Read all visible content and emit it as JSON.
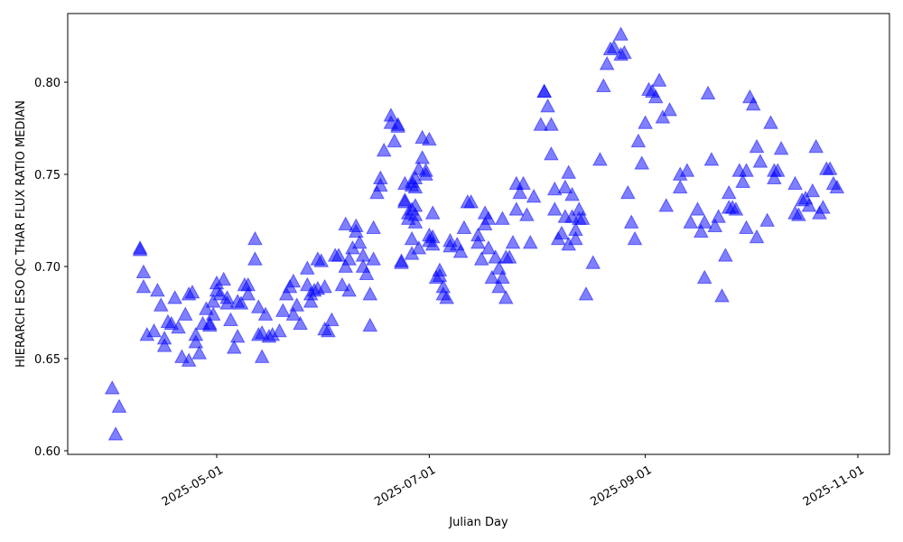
{
  "chart_data": {
    "type": "scatter",
    "title": "",
    "xlabel": "Julian Day",
    "ylabel": "HIERARCH ESO QC THAR FLUX RATIO MEDIAN",
    "ylim": [
      0.598,
      0.838
    ],
    "xlim": [
      "2025-03-21",
      "2025-11-17"
    ],
    "grid": false,
    "legend": null,
    "marker": "triangle-up",
    "color": "#0000ff",
    "alpha": 0.5,
    "y_ticks": [
      "0.60",
      "0.65",
      "0.70",
      "0.75",
      "0.80"
    ],
    "x_ticks": [
      "2025-05-01",
      "2025-07-01",
      "2025-09-01",
      "2025-11-01"
    ],
    "series": [
      {
        "name": "QC THAR FLUX RATIO MEDIAN",
        "points": [
          [
            "2025-04-01",
            0.634
          ],
          [
            "2025-04-02",
            0.609
          ],
          [
            "2025-04-03",
            0.624
          ],
          [
            "2025-04-09",
            0.71
          ],
          [
            "2025-04-09",
            0.709
          ],
          [
            "2025-04-10",
            0.697
          ],
          [
            "2025-04-10",
            0.689
          ],
          [
            "2025-04-11",
            0.663
          ],
          [
            "2025-04-13",
            0.665
          ],
          [
            "2025-04-14",
            0.687
          ],
          [
            "2025-04-15",
            0.679
          ],
          [
            "2025-04-16",
            0.661
          ],
          [
            "2025-04-16",
            0.657
          ],
          [
            "2025-04-17",
            0.67
          ],
          [
            "2025-04-18",
            0.669
          ],
          [
            "2025-04-19",
            0.683
          ],
          [
            "2025-04-20",
            0.667
          ],
          [
            "2025-04-21",
            0.651
          ],
          [
            "2025-04-22",
            0.674
          ],
          [
            "2025-04-23",
            0.649
          ],
          [
            "2025-04-23",
            0.685
          ],
          [
            "2025-04-24",
            0.686
          ],
          [
            "2025-04-25",
            0.659
          ],
          [
            "2025-04-25",
            0.663
          ],
          [
            "2025-04-26",
            0.653
          ],
          [
            "2025-04-27",
            0.669
          ],
          [
            "2025-04-28",
            0.677
          ],
          [
            "2025-04-29",
            0.668
          ],
          [
            "2025-04-29",
            0.669
          ],
          [
            "2025-04-30",
            0.674
          ],
          [
            "2025-04-30",
            0.681
          ],
          [
            "2025-05-01",
            0.687
          ],
          [
            "2025-05-01",
            0.691
          ],
          [
            "2025-05-02",
            0.685
          ],
          [
            "2025-05-03",
            0.693
          ],
          [
            "2025-05-04",
            0.683
          ],
          [
            "2025-05-04",
            0.68
          ],
          [
            "2025-05-05",
            0.671
          ],
          [
            "2025-05-06",
            0.656
          ],
          [
            "2025-05-07",
            0.662
          ],
          [
            "2025-05-07",
            0.681
          ],
          [
            "2025-05-08",
            0.68
          ],
          [
            "2025-05-09",
            0.69
          ],
          [
            "2025-05-10",
            0.69
          ],
          [
            "2025-05-10",
            0.685
          ],
          [
            "2025-05-12",
            0.715
          ],
          [
            "2025-05-12",
            0.704
          ],
          [
            "2025-05-13",
            0.678
          ],
          [
            "2025-05-13",
            0.663
          ],
          [
            "2025-05-14",
            0.664
          ],
          [
            "2025-05-14",
            0.651
          ],
          [
            "2025-05-15",
            0.674
          ],
          [
            "2025-05-16",
            0.662
          ],
          [
            "2025-05-17",
            0.663
          ],
          [
            "2025-05-19",
            0.665
          ],
          [
            "2025-05-20",
            0.676
          ],
          [
            "2025-05-21",
            0.685
          ],
          [
            "2025-05-22",
            0.689
          ],
          [
            "2025-05-23",
            0.692
          ],
          [
            "2025-05-23",
            0.674
          ],
          [
            "2025-05-24",
            0.679
          ],
          [
            "2025-05-25",
            0.669
          ],
          [
            "2025-05-27",
            0.699
          ],
          [
            "2025-05-27",
            0.69
          ],
          [
            "2025-05-28",
            0.681
          ],
          [
            "2025-05-28",
            0.685
          ],
          [
            "2025-05-29",
            0.687
          ],
          [
            "2025-05-30",
            0.704
          ],
          [
            "2025-05-30",
            0.688
          ],
          [
            "2025-05-31",
            0.703
          ],
          [
            "2025-06-01",
            0.689
          ],
          [
            "2025-06-01",
            0.666
          ],
          [
            "2025-06-02",
            0.665
          ],
          [
            "2025-06-03",
            0.671
          ],
          [
            "2025-06-04",
            0.706
          ],
          [
            "2025-06-05",
            0.706
          ],
          [
            "2025-06-06",
            0.69
          ],
          [
            "2025-06-07",
            0.723
          ],
          [
            "2025-06-07",
            0.7
          ],
          [
            "2025-06-08",
            0.704
          ],
          [
            "2025-06-08",
            0.687
          ],
          [
            "2025-06-09",
            0.71
          ],
          [
            "2025-06-10",
            0.722
          ],
          [
            "2025-06-10",
            0.719
          ],
          [
            "2025-06-11",
            0.713
          ],
          [
            "2025-06-12",
            0.706
          ],
          [
            "2025-06-12",
            0.7
          ],
          [
            "2025-06-13",
            0.696
          ],
          [
            "2025-06-14",
            0.685
          ],
          [
            "2025-06-14",
            0.668
          ],
          [
            "2025-06-15",
            0.704
          ],
          [
            "2025-06-15",
            0.721
          ],
          [
            "2025-06-16",
            0.74
          ],
          [
            "2025-06-17",
            0.748
          ],
          [
            "2025-06-17",
            0.744
          ],
          [
            "2025-06-18",
            0.763
          ],
          [
            "2025-06-20",
            0.782
          ],
          [
            "2025-06-20",
            0.778
          ],
          [
            "2025-06-21",
            0.768
          ],
          [
            "2025-06-22",
            0.776
          ],
          [
            "2025-06-22",
            0.777
          ],
          [
            "2025-06-23",
            0.703
          ],
          [
            "2025-06-23",
            0.702
          ],
          [
            "2025-06-24",
            0.745
          ],
          [
            "2025-06-24",
            0.736
          ],
          [
            "2025-06-24",
            0.735
          ],
          [
            "2025-06-25",
            0.729
          ],
          [
            "2025-06-25",
            0.726
          ],
          [
            "2025-06-26",
            0.746
          ],
          [
            "2025-06-26",
            0.744
          ],
          [
            "2025-06-26",
            0.731
          ],
          [
            "2025-06-26",
            0.715
          ],
          [
            "2025-06-26",
            0.707
          ],
          [
            "2025-06-27",
            0.748
          ],
          [
            "2025-06-27",
            0.743
          ],
          [
            "2025-06-27",
            0.733
          ],
          [
            "2025-06-27",
            0.728
          ],
          [
            "2025-06-27",
            0.724
          ],
          [
            "2025-06-28",
            0.71
          ],
          [
            "2025-06-28",
            0.753
          ],
          [
            "2025-06-29",
            0.77
          ],
          [
            "2025-06-29",
            0.759
          ],
          [
            "2025-06-30",
            0.752
          ],
          [
            "2025-06-30",
            0.75
          ],
          [
            "2025-07-01",
            0.769
          ],
          [
            "2025-07-01",
            0.717
          ],
          [
            "2025-07-01",
            0.714
          ],
          [
            "2025-07-02",
            0.716
          ],
          [
            "2025-07-02",
            0.712
          ],
          [
            "2025-07-02",
            0.729
          ],
          [
            "2025-07-03",
            0.694
          ],
          [
            "2025-07-04",
            0.698
          ],
          [
            "2025-07-04",
            0.695
          ],
          [
            "2025-07-05",
            0.689
          ],
          [
            "2025-07-05",
            0.685
          ],
          [
            "2025-07-06",
            0.683
          ],
          [
            "2025-07-07",
            0.714
          ],
          [
            "2025-07-07",
            0.711
          ],
          [
            "2025-07-09",
            0.712
          ],
          [
            "2025-07-10",
            0.708
          ],
          [
            "2025-07-11",
            0.721
          ],
          [
            "2025-07-12",
            0.735
          ],
          [
            "2025-07-13",
            0.735
          ],
          [
            "2025-07-15",
            0.717
          ],
          [
            "2025-07-15",
            0.713
          ],
          [
            "2025-07-16",
            0.704
          ],
          [
            "2025-07-17",
            0.723
          ],
          [
            "2025-07-17",
            0.729
          ],
          [
            "2025-07-18",
            0.71
          ],
          [
            "2025-07-18",
            0.726
          ],
          [
            "2025-07-19",
            0.694
          ],
          [
            "2025-07-20",
            0.705
          ],
          [
            "2025-07-21",
            0.689
          ],
          [
            "2025-07-21",
            0.699
          ],
          [
            "2025-07-22",
            0.726
          ],
          [
            "2025-07-22",
            0.694
          ],
          [
            "2025-07-23",
            0.683
          ],
          [
            "2025-07-23",
            0.705
          ],
          [
            "2025-07-24",
            0.705
          ],
          [
            "2025-07-25",
            0.713
          ],
          [
            "2025-07-26",
            0.731
          ],
          [
            "2025-07-26",
            0.745
          ],
          [
            "2025-07-27",
            0.74
          ],
          [
            "2025-07-28",
            0.745
          ],
          [
            "2025-07-29",
            0.728
          ],
          [
            "2025-07-30",
            0.713
          ],
          [
            "2025-07-31",
            0.738
          ],
          [
            "2025-08-02",
            0.777
          ],
          [
            "2025-08-03",
            0.795
          ],
          [
            "2025-08-03",
            0.795
          ],
          [
            "2025-08-04",
            0.787
          ],
          [
            "2025-08-05",
            0.777
          ],
          [
            "2025-08-05",
            0.761
          ],
          [
            "2025-08-06",
            0.742
          ],
          [
            "2025-08-06",
            0.731
          ],
          [
            "2025-08-07",
            0.715
          ],
          [
            "2025-08-08",
            0.718
          ],
          [
            "2025-08-09",
            0.727
          ],
          [
            "2025-08-09",
            0.743
          ],
          [
            "2025-08-10",
            0.712
          ],
          [
            "2025-08-10",
            0.751
          ],
          [
            "2025-08-11",
            0.739
          ],
          [
            "2025-08-11",
            0.727
          ],
          [
            "2025-08-12",
            0.715
          ],
          [
            "2025-08-12",
            0.72
          ],
          [
            "2025-08-13",
            0.731
          ],
          [
            "2025-08-13",
            0.726
          ],
          [
            "2025-08-14",
            0.726
          ],
          [
            "2025-08-15",
            0.685
          ],
          [
            "2025-08-17",
            0.702
          ],
          [
            "2025-08-19",
            0.758
          ],
          [
            "2025-08-20",
            0.798
          ],
          [
            "2025-08-21",
            0.81
          ],
          [
            "2025-08-22",
            0.818
          ],
          [
            "2025-08-23",
            0.819
          ],
          [
            "2025-08-25",
            0.815
          ],
          [
            "2025-08-25",
            0.826
          ],
          [
            "2025-08-26",
            0.816
          ],
          [
            "2025-08-27",
            0.74
          ],
          [
            "2025-08-28",
            0.724
          ],
          [
            "2025-08-29",
            0.715
          ],
          [
            "2025-08-30",
            0.768
          ],
          [
            "2025-08-31",
            0.756
          ],
          [
            "2025-09-01",
            0.778
          ],
          [
            "2025-09-02",
            0.796
          ],
          [
            "2025-09-03",
            0.795
          ],
          [
            "2025-09-04",
            0.792
          ],
          [
            "2025-09-05",
            0.801
          ],
          [
            "2025-09-06",
            0.781
          ],
          [
            "2025-09-07",
            0.733
          ],
          [
            "2025-09-08",
            0.785
          ],
          [
            "2025-09-11",
            0.75
          ],
          [
            "2025-09-11",
            0.743
          ],
          [
            "2025-09-13",
            0.752
          ],
          [
            "2025-09-14",
            0.724
          ],
          [
            "2025-09-16",
            0.731
          ],
          [
            "2025-09-17",
            0.719
          ],
          [
            "2025-09-18",
            0.724
          ],
          [
            "2025-09-18",
            0.694
          ],
          [
            "2025-09-19",
            0.794
          ],
          [
            "2025-09-20",
            0.758
          ],
          [
            "2025-09-21",
            0.722
          ],
          [
            "2025-09-22",
            0.727
          ],
          [
            "2025-09-23",
            0.684
          ],
          [
            "2025-09-24",
            0.706
          ],
          [
            "2025-09-25",
            0.74
          ],
          [
            "2025-09-25",
            0.732
          ],
          [
            "2025-09-26",
            0.732
          ],
          [
            "2025-09-27",
            0.731
          ],
          [
            "2025-09-28",
            0.752
          ],
          [
            "2025-09-29",
            0.746
          ],
          [
            "2025-09-30",
            0.752
          ],
          [
            "2025-09-30",
            0.721
          ],
          [
            "2025-10-01",
            0.792
          ],
          [
            "2025-10-02",
            0.788
          ],
          [
            "2025-10-03",
            0.765
          ],
          [
            "2025-10-03",
            0.716
          ],
          [
            "2025-10-04",
            0.757
          ],
          [
            "2025-10-06",
            0.725
          ],
          [
            "2025-10-07",
            0.778
          ],
          [
            "2025-10-08",
            0.752
          ],
          [
            "2025-10-08",
            0.748
          ],
          [
            "2025-10-09",
            0.752
          ],
          [
            "2025-10-10",
            0.764
          ],
          [
            "2025-10-14",
            0.745
          ],
          [
            "2025-10-14",
            0.729
          ],
          [
            "2025-10-15",
            0.728
          ],
          [
            "2025-10-16",
            0.736
          ],
          [
            "2025-10-17",
            0.737
          ],
          [
            "2025-10-18",
            0.733
          ],
          [
            "2025-10-19",
            0.741
          ],
          [
            "2025-10-20",
            0.765
          ],
          [
            "2025-10-21",
            0.729
          ],
          [
            "2025-10-22",
            0.732
          ],
          [
            "2025-10-23",
            0.753
          ],
          [
            "2025-10-24",
            0.753
          ],
          [
            "2025-10-25",
            0.745
          ],
          [
            "2025-10-26",
            0.743
          ]
        ]
      }
    ]
  },
  "axes": {
    "xlabel": "Julian Day",
    "ylabel": "HIERARCH ESO QC THAR FLUX RATIO MEDIAN",
    "x_ticks": [
      {
        "label": "2025-05-01",
        "date": "2025-05-01"
      },
      {
        "label": "2025-07-01",
        "date": "2025-07-01"
      },
      {
        "label": "2025-09-01",
        "date": "2025-09-01"
      },
      {
        "label": "2025-11-01",
        "date": "2025-11-01"
      }
    ],
    "y_ticks": [
      {
        "label": "0.60",
        "value": 0.6
      },
      {
        "label": "0.65",
        "value": 0.65
      },
      {
        "label": "0.70",
        "value": 0.7
      },
      {
        "label": "0.75",
        "value": 0.75
      },
      {
        "label": "0.80",
        "value": 0.8
      }
    ]
  },
  "style": {
    "marker_color": "#0000ff",
    "marker_opacity": 0.5,
    "frame_color": "#000000"
  }
}
